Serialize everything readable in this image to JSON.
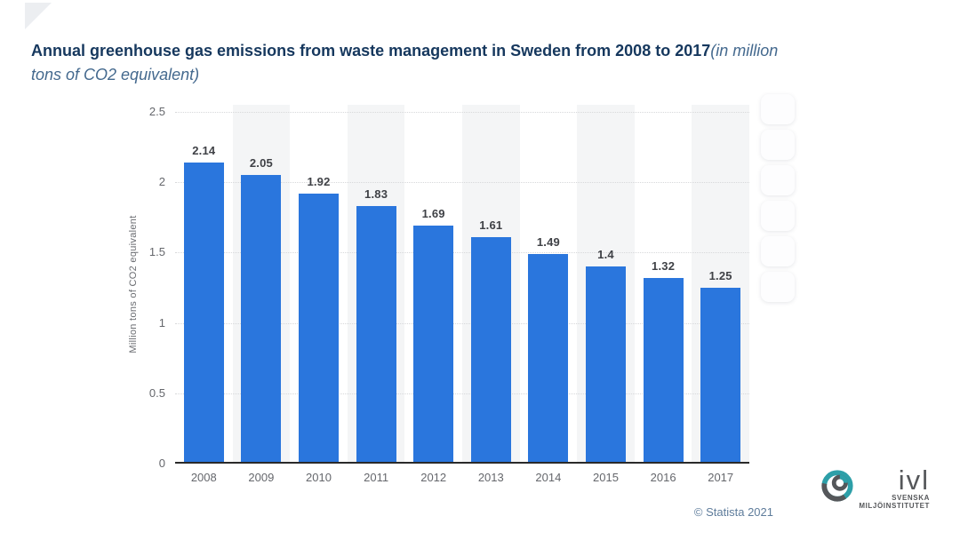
{
  "header": {
    "title_bold": "Annual greenhouse gas emissions from waste management in Sweden from 2008 to 2017",
    "subtitle_part1": "(in million",
    "subtitle_part2": "tons of CO2 equivalent)"
  },
  "chart_data": {
    "type": "bar",
    "title": "Annual greenhouse gas emissions from waste management in Sweden from 2008 to 2017 (in million tons of CO2 equivalent)",
    "categories": [
      "2008",
      "2009",
      "2010",
      "2011",
      "2012",
      "2013",
      "2014",
      "2015",
      "2016",
      "2017"
    ],
    "values": [
      2.14,
      2.05,
      1.92,
      1.83,
      1.69,
      1.61,
      1.49,
      1.4,
      1.32,
      1.25
    ],
    "value_labels": [
      "2.14",
      "2.05",
      "1.92",
      "1.83",
      "1.69",
      "1.61",
      "1.49",
      "1.4",
      "1.32",
      "1.25"
    ],
    "xlabel": "",
    "ylabel": "Million tons of CO2 equivalent",
    "ylim": [
      0,
      2.5
    ],
    "yticks": [
      0,
      0.5,
      1,
      1.5,
      2,
      2.5
    ],
    "ytick_labels": [
      "0",
      "0.5",
      "1",
      "1.5",
      "2",
      "2.5"
    ],
    "grid": "horizontal-dotted",
    "legend": "none",
    "bar_color": "#2a76dd",
    "stripe_color": "#f4f5f6",
    "striped_column_indexes": [
      1,
      3,
      5,
      7,
      9
    ]
  },
  "toolbar": {
    "button_count": 6
  },
  "footer": {
    "copyright": "© Statista 2021"
  },
  "logo": {
    "name": "ivl",
    "line1": "SVENSKA",
    "line2": "MILJÖINSTITUTET"
  },
  "colors": {
    "bar": "#2a76dd",
    "title": "#16385e",
    "subtitle": "#44698e",
    "axis_line": "#2a2a2a",
    "gridline": "#d7d8da",
    "tick_label": "#65676c",
    "value_label": "#3f4146",
    "stripe": "#f4f5f6",
    "copyright": "#5e7c9b",
    "logo_teal": "#2d9fa8",
    "logo_gray": "#55575a"
  }
}
